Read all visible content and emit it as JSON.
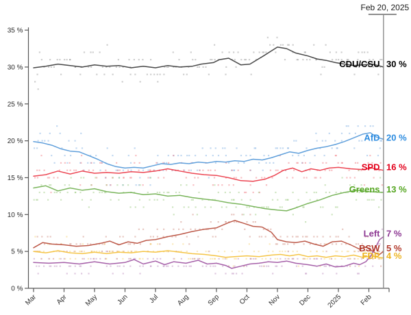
{
  "chart_data": {
    "type": "scatter",
    "title": "",
    "x_unit": "months (Mar 2024 – Feb 2025)",
    "x_tick_labels": [
      "Mar",
      "Apr",
      "May",
      "Jun",
      "Jul",
      "Aug",
      "Sep",
      "Oct",
      "Nov",
      "Dec",
      "2025",
      "Feb"
    ],
    "y_ticks": [
      0,
      5,
      10,
      15,
      20,
      25,
      30,
      35
    ],
    "y_tick_labels": [
      "0 %",
      "5 %",
      "10 %",
      "15 %",
      "20 %",
      "25 %",
      "30 %",
      "35 %"
    ],
    "ylim": [
      0,
      36
    ],
    "grid": "off",
    "legend_position": "right-edge-labels",
    "marker": {
      "m": 11.48,
      "label": "Feb 20, 2025"
    },
    "series": [
      {
        "id": "cdu",
        "name": "CDU/CSU",
        "value": 30,
        "value_label": "30 %",
        "line_color": "#474747",
        "dot_color": "#8c8c8c",
        "label_color": "#000000",
        "sigma": 1.1,
        "points": [
          [
            0,
            29.9
          ],
          [
            0.4,
            30.1
          ],
          [
            0.8,
            30.4
          ],
          [
            1.2,
            30.2
          ],
          [
            1.6,
            30.0
          ],
          [
            2,
            30.3
          ],
          [
            2.4,
            30.1
          ],
          [
            2.8,
            30.2
          ],
          [
            3.2,
            29.9
          ],
          [
            3.6,
            30.1
          ],
          [
            4,
            29.9
          ],
          [
            4.4,
            30.2
          ],
          [
            4.8,
            30.0
          ],
          [
            5.2,
            30.1
          ],
          [
            5.5,
            30.4
          ],
          [
            5.9,
            30.6
          ],
          [
            6.1,
            31.0
          ],
          [
            6.4,
            31.2
          ],
          [
            6.8,
            30.3
          ],
          [
            7.1,
            30.4
          ],
          [
            7.5,
            31.4
          ],
          [
            8,
            32.7
          ],
          [
            8.3,
            32.5
          ],
          [
            8.6,
            31.9
          ],
          [
            9,
            31.5
          ],
          [
            9.3,
            31.1
          ],
          [
            9.6,
            30.9
          ],
          [
            9.9,
            30.6
          ],
          [
            10.2,
            30.4
          ],
          [
            10.5,
            30.2
          ],
          [
            10.8,
            30.3
          ],
          [
            11.1,
            30.4
          ],
          [
            11.3,
            30.2
          ],
          [
            11.48,
            30.0
          ]
        ]
      },
      {
        "id": "afd",
        "name": "AfD",
        "value": 20,
        "value_label": "20 %",
        "line_color": "#5f9fdb",
        "dot_color": "#6ba3dd",
        "label_color": "#2d8ce0",
        "sigma": 1.2,
        "points": [
          [
            0,
            19.9
          ],
          [
            0.3,
            19.7
          ],
          [
            0.6,
            19.4
          ],
          [
            0.9,
            18.9
          ],
          [
            1.2,
            18.6
          ],
          [
            1.5,
            18.5
          ],
          [
            1.8,
            18.0
          ],
          [
            2.1,
            17.5
          ],
          [
            2.4,
            16.9
          ],
          [
            2.7,
            16.5
          ],
          [
            3,
            16.3
          ],
          [
            3.3,
            16.4
          ],
          [
            3.6,
            16.3
          ],
          [
            3.9,
            16.6
          ],
          [
            4.2,
            16.9
          ],
          [
            4.5,
            16.8
          ],
          [
            4.8,
            17.0
          ],
          [
            5.1,
            16.9
          ],
          [
            5.4,
            17.1
          ],
          [
            5.7,
            17.0
          ],
          [
            6,
            17.2
          ],
          [
            6.3,
            17.1
          ],
          [
            6.6,
            17.3
          ],
          [
            6.9,
            17.2
          ],
          [
            7.2,
            17.5
          ],
          [
            7.5,
            17.4
          ],
          [
            7.8,
            17.7
          ],
          [
            8.1,
            18.1
          ],
          [
            8.4,
            18.5
          ],
          [
            8.7,
            18.3
          ],
          [
            9,
            18.7
          ],
          [
            9.3,
            19.0
          ],
          [
            9.6,
            19.2
          ],
          [
            9.9,
            19.5
          ],
          [
            10.2,
            19.9
          ],
          [
            10.5,
            20.4
          ],
          [
            10.8,
            20.9
          ],
          [
            11.05,
            21.1
          ],
          [
            11.25,
            20.5
          ],
          [
            11.48,
            20.2
          ]
        ]
      },
      {
        "id": "spd",
        "name": "SPD",
        "value": 16,
        "value_label": "16 %",
        "line_color": "#ec4552",
        "dot_color": "#ef6671",
        "label_color": "#e3001b",
        "sigma": 1.0,
        "points": [
          [
            0,
            15.2
          ],
          [
            0.4,
            15.4
          ],
          [
            0.8,
            15.9
          ],
          [
            1.2,
            15.5
          ],
          [
            1.6,
            15.9
          ],
          [
            2,
            15.6
          ],
          [
            2.4,
            15.7
          ],
          [
            2.8,
            15.6
          ],
          [
            3.2,
            15.8
          ],
          [
            3.6,
            15.7
          ],
          [
            4,
            15.9
          ],
          [
            4.4,
            16.2
          ],
          [
            4.8,
            15.9
          ],
          [
            5.2,
            15.6
          ],
          [
            5.6,
            15.4
          ],
          [
            6,
            15.3
          ],
          [
            6.4,
            15.0
          ],
          [
            6.8,
            14.6
          ],
          [
            7.2,
            14.5
          ],
          [
            7.6,
            14.8
          ],
          [
            7.9,
            15.3
          ],
          [
            8.2,
            16.0
          ],
          [
            8.5,
            16.3
          ],
          [
            8.8,
            15.8
          ],
          [
            9.1,
            16.2
          ],
          [
            9.4,
            16.0
          ],
          [
            9.7,
            16.3
          ],
          [
            10,
            16.4
          ],
          [
            10.4,
            16.2
          ],
          [
            10.8,
            16.1
          ],
          [
            11.1,
            16.3
          ],
          [
            11.48,
            16.0
          ]
        ]
      },
      {
        "id": "greens",
        "name": "Greens",
        "value": 13,
        "value_label": "13 %",
        "line_color": "#7ab55c",
        "dot_color": "#8cc06e",
        "label_color": "#53a51f",
        "sigma": 1.0,
        "points": [
          [
            0,
            13.6
          ],
          [
            0.4,
            13.9
          ],
          [
            0.8,
            13.2
          ],
          [
            1.2,
            13.6
          ],
          [
            1.6,
            13.3
          ],
          [
            2,
            13.5
          ],
          [
            2.4,
            13.1
          ],
          [
            2.8,
            12.9
          ],
          [
            3.2,
            13.0
          ],
          [
            3.6,
            12.7
          ],
          [
            4,
            12.8
          ],
          [
            4.4,
            12.5
          ],
          [
            4.8,
            12.6
          ],
          [
            5.2,
            12.3
          ],
          [
            5.6,
            12.1
          ],
          [
            6,
            11.9
          ],
          [
            6.4,
            11.6
          ],
          [
            6.8,
            11.4
          ],
          [
            7.2,
            11.1
          ],
          [
            7.6,
            10.8
          ],
          [
            8,
            10.6
          ],
          [
            8.3,
            10.5
          ],
          [
            8.6,
            10.9
          ],
          [
            9,
            11.5
          ],
          [
            9.4,
            12.0
          ],
          [
            9.8,
            12.6
          ],
          [
            10.2,
            13.0
          ],
          [
            10.6,
            13.3
          ],
          [
            11,
            13.1
          ],
          [
            11.48,
            13.0
          ]
        ]
      },
      {
        "id": "bsw",
        "name": "BSW",
        "value": 5,
        "value_label": "5 %",
        "line_color": "#bd5a4a",
        "dot_color": "#c97a6c",
        "label_color": "#b23a2c",
        "sigma": 0.9,
        "points": [
          [
            0,
            5.5
          ],
          [
            0.3,
            6.2
          ],
          [
            0.6,
            6.0
          ],
          [
            1,
            5.9
          ],
          [
            1.4,
            5.7
          ],
          [
            1.8,
            5.8
          ],
          [
            2.2,
            6.1
          ],
          [
            2.5,
            6.4
          ],
          [
            2.8,
            5.9
          ],
          [
            3.1,
            6.3
          ],
          [
            3.4,
            6.1
          ],
          [
            3.7,
            6.5
          ],
          [
            4,
            6.6
          ],
          [
            4.4,
            7.0
          ],
          [
            4.8,
            7.3
          ],
          [
            5.2,
            7.7
          ],
          [
            5.6,
            8.0
          ],
          [
            6,
            8.2
          ],
          [
            6.4,
            8.9
          ],
          [
            6.6,
            9.2
          ],
          [
            6.9,
            8.8
          ],
          [
            7.2,
            8.4
          ],
          [
            7.5,
            8.3
          ],
          [
            7.8,
            7.6
          ],
          [
            8,
            6.6
          ],
          [
            8.3,
            6.3
          ],
          [
            8.6,
            6.2
          ],
          [
            8.9,
            6.4
          ],
          [
            9.2,
            6.0
          ],
          [
            9.5,
            5.7
          ],
          [
            9.8,
            6.3
          ],
          [
            10.1,
            6.4
          ],
          [
            10.4,
            5.9
          ],
          [
            10.7,
            5.3
          ],
          [
            10.9,
            5.6
          ],
          [
            11.1,
            5.1
          ],
          [
            11.25,
            4.7
          ],
          [
            11.35,
            4.6
          ],
          [
            11.48,
            5.0
          ]
        ]
      },
      {
        "id": "fdp",
        "name": "FDP",
        "value": 4,
        "value_label": "4 %",
        "line_color": "#f5c445",
        "dot_color": "#f6cd62",
        "label_color": "#edb421",
        "sigma": 0.7,
        "points": [
          [
            0,
            5.0
          ],
          [
            0.4,
            4.8
          ],
          [
            0.8,
            5.1
          ],
          [
            1.2,
            4.8
          ],
          [
            1.6,
            4.7
          ],
          [
            2,
            4.9
          ],
          [
            2.4,
            4.7
          ],
          [
            2.8,
            4.9
          ],
          [
            3.2,
            4.8
          ],
          [
            3.6,
            5.0
          ],
          [
            4,
            4.9
          ],
          [
            4.4,
            5.1
          ],
          [
            4.8,
            4.9
          ],
          [
            5.2,
            4.7
          ],
          [
            5.6,
            4.6
          ],
          [
            6,
            4.4
          ],
          [
            6.3,
            4.2
          ],
          [
            6.6,
            4.3
          ],
          [
            7,
            4.4
          ],
          [
            7.4,
            4.3
          ],
          [
            7.8,
            4.5
          ],
          [
            8.1,
            4.6
          ],
          [
            8.4,
            4.4
          ],
          [
            8.7,
            4.6
          ],
          [
            9,
            4.3
          ],
          [
            9.3,
            4.4
          ],
          [
            9.6,
            4.2
          ],
          [
            9.9,
            4.4
          ],
          [
            10.2,
            4.3
          ],
          [
            10.5,
            4.5
          ],
          [
            10.8,
            4.2
          ],
          [
            11.1,
            4.4
          ],
          [
            11.3,
            4.2
          ],
          [
            11.48,
            4.1
          ]
        ]
      },
      {
        "id": "left",
        "name": "Left",
        "value": 7,
        "value_label": "7 %",
        "line_color": "#a55fa8",
        "dot_color": "#b27cb5",
        "label_color": "#8e3a94",
        "sigma": 0.7,
        "points": [
          [
            0,
            3.5
          ],
          [
            0.5,
            3.4
          ],
          [
            1,
            3.5
          ],
          [
            1.5,
            3.3
          ],
          [
            2,
            3.6
          ],
          [
            2.5,
            3.3
          ],
          [
            3,
            3.5
          ],
          [
            3.3,
            3.9
          ],
          [
            3.6,
            3.3
          ],
          [
            4,
            3.7
          ],
          [
            4.3,
            3.2
          ],
          [
            4.6,
            3.6
          ],
          [
            5,
            3.4
          ],
          [
            5.4,
            3.8
          ],
          [
            5.7,
            3.3
          ],
          [
            6,
            3.4
          ],
          [
            6.3,
            3.1
          ],
          [
            6.5,
            2.7
          ],
          [
            6.8,
            3.0
          ],
          [
            7.1,
            3.3
          ],
          [
            7.4,
            3.4
          ],
          [
            7.7,
            3.6
          ],
          [
            8,
            3.5
          ],
          [
            8.3,
            3.7
          ],
          [
            8.6,
            3.4
          ],
          [
            9,
            3.2
          ],
          [
            9.3,
            3.0
          ],
          [
            9.6,
            3.3
          ],
          [
            9.9,
            2.9
          ],
          [
            10.2,
            3.0
          ],
          [
            10.5,
            3.4
          ],
          [
            10.7,
            3.2
          ],
          [
            10.9,
            3.6
          ],
          [
            11.05,
            4.3
          ],
          [
            11.2,
            5.4
          ],
          [
            11.35,
            6.6
          ],
          [
            11.48,
            7.0
          ]
        ]
      }
    ],
    "scatter_style": {
      "seed": 20250220,
      "polls": 150,
      "dot_size": 2.2,
      "dot_opacity": 0.42
    }
  }
}
